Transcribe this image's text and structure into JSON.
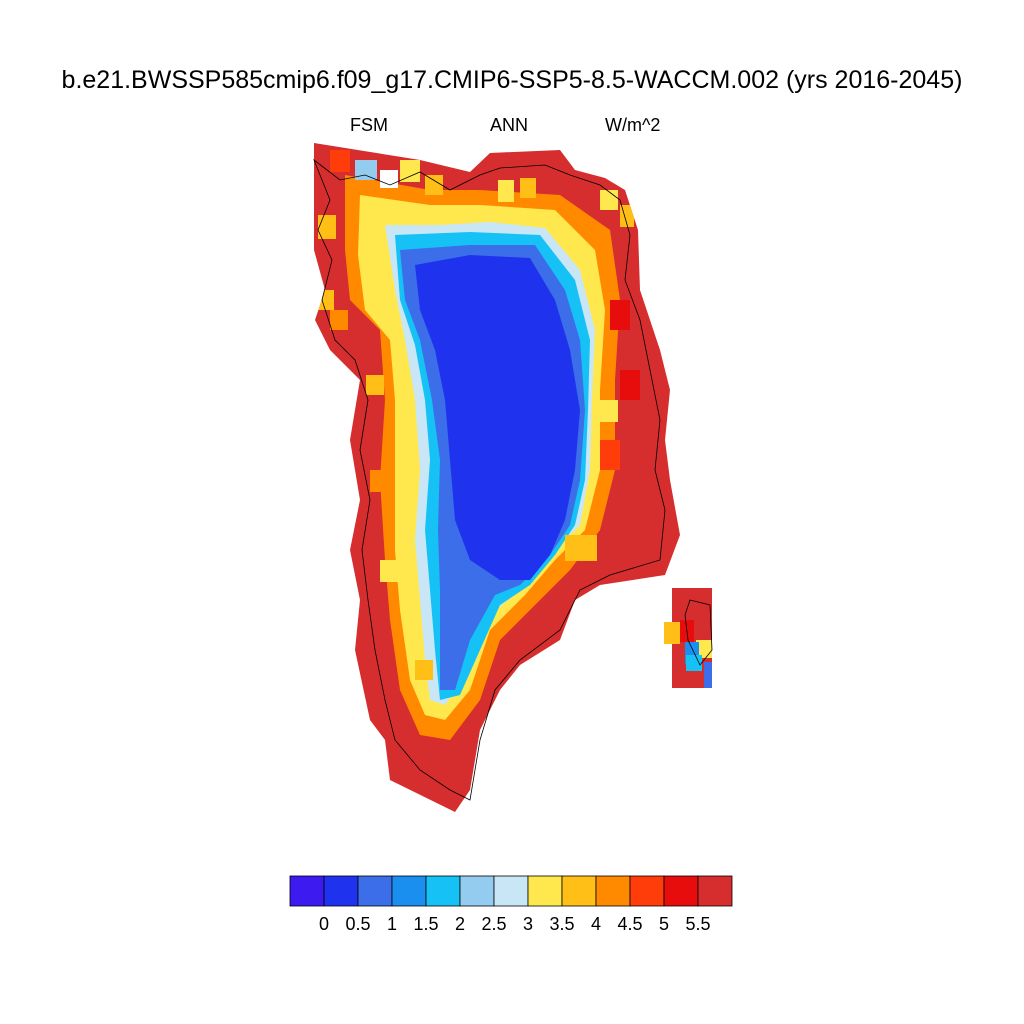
{
  "title": "b.e21.BWSSP585cmip6.f09_g17.CMIP6-SSP5-8.5-WACCM.002 (yrs 2016-2045)",
  "subtitle_left": "FSM",
  "subtitle_center": "ANN",
  "subtitle_right": "W/m^2",
  "colorbar": {
    "colors": [
      "#3c1af0",
      "#1f33ee",
      "#3b6ee8",
      "#1b8ff0",
      "#16c1f6",
      "#93ccee",
      "#c8e6f6",
      "#ffe84e",
      "#ffbf17",
      "#ff8a00",
      "#ff3d0a",
      "#e80d0d",
      "#d62e2e"
    ],
    "labels": [
      "0",
      "0.5",
      "1",
      "1.5",
      "2",
      "2.5",
      "3",
      "3.5",
      "4",
      "4.5",
      "5",
      "5.5"
    ]
  }
}
